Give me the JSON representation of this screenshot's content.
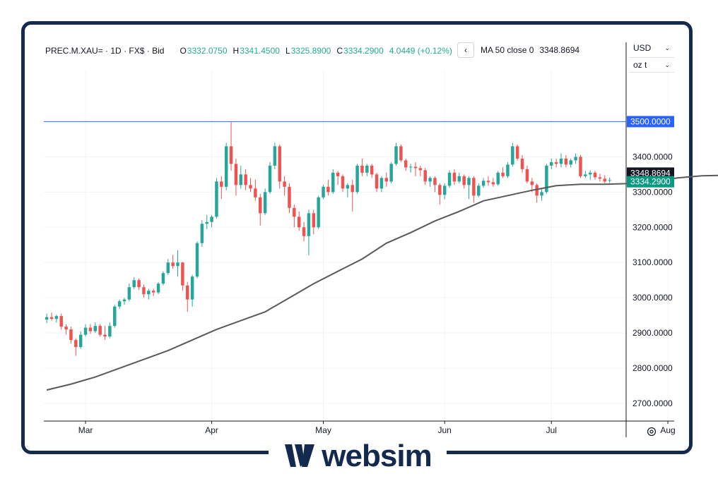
{
  "header": {
    "symbol": "PREC.M.XAU=",
    "interval": "1D",
    "source": "FX$",
    "price_type": "Bid",
    "open_label": "O",
    "open": "3332.0750",
    "high_label": "H",
    "high": "3341.4500",
    "low_label": "L",
    "low": "3325.8900",
    "close_label": "C",
    "close": "3334.2900",
    "change": "4.0449 (+0.12%)"
  },
  "ma_legend": {
    "label": "MA 50 close 0",
    "value": "3348.8694"
  },
  "selectors": {
    "currency": "USD",
    "unit": "oz t"
  },
  "watermark": {
    "text": "websim"
  },
  "colors": {
    "up": "#26a69a",
    "down": "#ef5350",
    "up_display": "#22ab94",
    "down_display": "#f23645",
    "ma": "#595959",
    "hline": "#2962ff",
    "frame": "#14294e"
  },
  "chart_data": {
    "type": "candlestick",
    "x_ticks": [
      "Mar",
      "Apr",
      "May",
      "Jun",
      "Jul",
      "Aug"
    ],
    "y_ticks": [
      "2700.0000",
      "2800.0000",
      "2900.0000",
      "3000.0000",
      "3100.0000",
      "3200.0000",
      "3300.0000",
      "3400.0000"
    ],
    "ylim": [
      2650,
      3645
    ],
    "grid": true,
    "horizontal_line": {
      "value": 3500,
      "label": "3500.0000"
    },
    "ma_label": {
      "value": 3348.8694,
      "label": "3348.8694"
    },
    "last_price_label": {
      "value": 3334.29,
      "label": "3334.2900"
    },
    "candles": [
      [
        2938,
        2955,
        2928,
        2945
      ],
      [
        2945,
        2958,
        2935,
        2940
      ],
      [
        2940,
        2952,
        2930,
        2948
      ],
      [
        2948,
        2955,
        2910,
        2918
      ],
      [
        2918,
        2925,
        2895,
        2910
      ],
      [
        2910,
        2918,
        2870,
        2880
      ],
      [
        2880,
        2885,
        2835,
        2860
      ],
      [
        2860,
        2905,
        2855,
        2895
      ],
      [
        2895,
        2925,
        2890,
        2915
      ],
      [
        2915,
        2925,
        2898,
        2905
      ],
      [
        2905,
        2930,
        2900,
        2920
      ],
      [
        2920,
        2925,
        2890,
        2895
      ],
      [
        2895,
        2920,
        2880,
        2890
      ],
      [
        2890,
        2930,
        2885,
        2920
      ],
      [
        2920,
        2980,
        2915,
        2975
      ],
      [
        2975,
        2995,
        2968,
        2990
      ],
      [
        2990,
        3000,
        2980,
        2995
      ],
      [
        2995,
        3040,
        2990,
        3030
      ],
      [
        3030,
        3058,
        3025,
        3050
      ],
      [
        3050,
        3055,
        3022,
        3030
      ],
      [
        3030,
        3038,
        3000,
        3010
      ],
      [
        3010,
        3025,
        2995,
        3020
      ],
      [
        3020,
        3025,
        3005,
        3015
      ],
      [
        3015,
        3045,
        3010,
        3040
      ],
      [
        3040,
        3075,
        3035,
        3070
      ],
      [
        3070,
        3110,
        3065,
        3100
      ],
      [
        3100,
        3122,
        3082,
        3090
      ],
      [
        3090,
        3135,
        3060,
        3100
      ],
      [
        3100,
        3102,
        3020,
        3035
      ],
      [
        3035,
        3045,
        2960,
        2995
      ],
      [
        2995,
        3065,
        2975,
        3060
      ],
      [
        3060,
        3160,
        3055,
        3155
      ],
      [
        3155,
        3220,
        3145,
        3210
      ],
      [
        3210,
        3235,
        3195,
        3215
      ],
      [
        3215,
        3235,
        3200,
        3230
      ],
      [
        3230,
        3340,
        3225,
        3330
      ],
      [
        3330,
        3345,
        3280,
        3315
      ],
      [
        3315,
        3440,
        3305,
        3430
      ],
      [
        3430,
        3500,
        3360,
        3380
      ],
      [
        3380,
        3395,
        3290,
        3320
      ],
      [
        3320,
        3375,
        3310,
        3350
      ],
      [
        3350,
        3365,
        3305,
        3320
      ],
      [
        3320,
        3340,
        3300,
        3310
      ],
      [
        3310,
        3335,
        3275,
        3285
      ],
      [
        3285,
        3295,
        3205,
        3240
      ],
      [
        3240,
        3310,
        3235,
        3300
      ],
      [
        3300,
        3385,
        3295,
        3375
      ],
      [
        3375,
        3440,
        3365,
        3430
      ],
      [
        3430,
        3435,
        3310,
        3330
      ],
      [
        3330,
        3345,
        3290,
        3315
      ],
      [
        3315,
        3325,
        3240,
        3255
      ],
      [
        3255,
        3265,
        3200,
        3230
      ],
      [
        3230,
        3245,
        3190,
        3200
      ],
      [
        3200,
        3215,
        3160,
        3175
      ],
      [
        3175,
        3250,
        3120,
        3240
      ],
      [
        3240,
        3250,
        3180,
        3200
      ],
      [
        3200,
        3290,
        3195,
        3285
      ],
      [
        3285,
        3320,
        3280,
        3315
      ],
      [
        3315,
        3335,
        3290,
        3300
      ],
      [
        3300,
        3365,
        3295,
        3355
      ],
      [
        3355,
        3360,
        3320,
        3345
      ],
      [
        3345,
        3350,
        3300,
        3310
      ],
      [
        3310,
        3325,
        3285,
        3320
      ],
      [
        3320,
        3335,
        3245,
        3300
      ],
      [
        3300,
        3380,
        3295,
        3375
      ],
      [
        3375,
        3395,
        3345,
        3355
      ],
      [
        3355,
        3380,
        3345,
        3375
      ],
      [
        3375,
        3380,
        3340,
        3350
      ],
      [
        3350,
        3355,
        3300,
        3310
      ],
      [
        3310,
        3345,
        3300,
        3340
      ],
      [
        3340,
        3355,
        3315,
        3330
      ],
      [
        3330,
        3385,
        3325,
        3380
      ],
      [
        3380,
        3440,
        3375,
        3430
      ],
      [
        3430,
        3435,
        3385,
        3390
      ],
      [
        3390,
        3395,
        3360,
        3370
      ],
      [
        3370,
        3380,
        3355,
        3372
      ],
      [
        3372,
        3385,
        3345,
        3368
      ],
      [
        3368,
        3375,
        3345,
        3362
      ],
      [
        3362,
        3368,
        3320,
        3330
      ],
      [
        3330,
        3345,
        3315,
        3340
      ],
      [
        3340,
        3345,
        3300,
        3320
      ],
      [
        3320,
        3325,
        3265,
        3292
      ],
      [
        3292,
        3325,
        3280,
        3318
      ],
      [
        3318,
        3362,
        3312,
        3355
      ],
      [
        3355,
        3365,
        3320,
        3330
      ],
      [
        3330,
        3355,
        3325,
        3345
      ],
      [
        3345,
        3350,
        3310,
        3320
      ],
      [
        3320,
        3345,
        3280,
        3340
      ],
      [
        3340,
        3345,
        3270,
        3290
      ],
      [
        3290,
        3325,
        3285,
        3318
      ],
      [
        3318,
        3340,
        3312,
        3332
      ],
      [
        3332,
        3345,
        3318,
        3328
      ],
      [
        3328,
        3340,
        3315,
        3322
      ],
      [
        3322,
        3360,
        3318,
        3355
      ],
      [
        3355,
        3370,
        3340,
        3345
      ],
      [
        3345,
        3385,
        3340,
        3378
      ],
      [
        3378,
        3440,
        3372,
        3430
      ],
      [
        3430,
        3435,
        3390,
        3395
      ],
      [
        3395,
        3405,
        3355,
        3365
      ],
      [
        3365,
        3375,
        3325,
        3330
      ],
      [
        3330,
        3340,
        3300,
        3320
      ],
      [
        3320,
        3325,
        3270,
        3290
      ],
      [
        3290,
        3310,
        3275,
        3300
      ],
      [
        3300,
        3380,
        3295,
        3375
      ],
      [
        3375,
        3395,
        3365,
        3385
      ],
      [
        3385,
        3395,
        3370,
        3380
      ],
      [
        3380,
        3410,
        3370,
        3395
      ],
      [
        3395,
        3405,
        3370,
        3378
      ],
      [
        3378,
        3395,
        3370,
        3390
      ],
      [
        3390,
        3410,
        3380,
        3400
      ],
      [
        3400,
        3405,
        3340,
        3345
      ],
      [
        3345,
        3360,
        3340,
        3350
      ],
      [
        3350,
        3362,
        3335,
        3355
      ],
      [
        3355,
        3360,
        3335,
        3342
      ],
      [
        3342,
        3352,
        3330,
        3338
      ],
      [
        3338,
        3348,
        3325,
        3330
      ],
      [
        3332,
        3341,
        3326,
        3334
      ]
    ],
    "ma": [
      [
        0,
        2738
      ],
      [
        5,
        2755
      ],
      [
        10,
        2775
      ],
      [
        15,
        2800
      ],
      [
        20,
        2825
      ],
      [
        25,
        2850
      ],
      [
        30,
        2880
      ],
      [
        35,
        2910
      ],
      [
        40,
        2935
      ],
      [
        45,
        2960
      ],
      [
        50,
        3000
      ],
      [
        55,
        3040
      ],
      [
        60,
        3075
      ],
      [
        65,
        3110
      ],
      [
        70,
        3155
      ],
      [
        75,
        3185
      ],
      [
        80,
        3218
      ],
      [
        85,
        3245
      ],
      [
        90,
        3275
      ],
      [
        95,
        3290
      ],
      [
        100,
        3305
      ],
      [
        105,
        3318
      ],
      [
        110,
        3322
      ],
      [
        115,
        3322
      ],
      [
        120,
        3324
      ],
      [
        125,
        3330
      ],
      [
        130,
        3340
      ],
      [
        135,
        3346
      ],
      [
        140,
        3348
      ],
      [
        145,
        3349
      ]
    ]
  }
}
